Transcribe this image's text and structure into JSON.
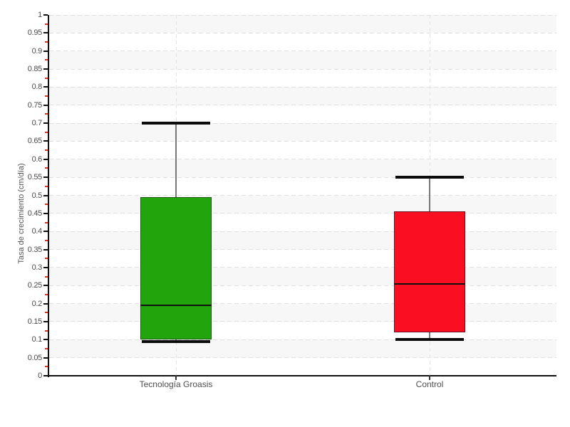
{
  "chart_data": {
    "type": "boxplot",
    "title": "",
    "xlabel": "",
    "ylabel": "Tasa de crecimiento (cm/día)",
    "ylim": [
      0,
      1
    ],
    "ytick_step": 0.05,
    "ytick_labels": [
      "0",
      "0.05",
      "0.1",
      "0.15",
      "0.2",
      "0.25",
      "0.3",
      "0.35",
      "0.4",
      "0.45",
      "0.5",
      "0.55",
      "0.6",
      "0.65",
      "0.7",
      "0.75",
      "0.8",
      "0.85",
      "0.9",
      "0.95",
      "1"
    ],
    "grid": "dashed horizontal at each 0.05, dashed vertical at category centers, alternating background bands",
    "legend": "none",
    "categories": [
      "Tecnología Groasis",
      "Control"
    ],
    "series": [
      {
        "name": "Tecnología Groasis",
        "min": 0.095,
        "q1": 0.1,
        "median": 0.195,
        "q3": 0.495,
        "max": 0.7,
        "fill": "#22a40c",
        "stroke": "#1a5c12"
      },
      {
        "name": "Control",
        "min": 0.1,
        "q1": 0.12,
        "median": 0.255,
        "q3": 0.455,
        "max": 0.55,
        "fill": "#fa0e22",
        "stroke": "#6b1020"
      }
    ],
    "colors": {
      "band_fill": "#f7f7f7",
      "grid_line": "#e0e0e0",
      "axis_line": "#111111",
      "major_tick": "#111111",
      "minor_tick": "#f32b12",
      "tick_label": "#4a4a4a",
      "whisker_line": "#777777",
      "whisker_cap": "#0b0b0b",
      "median_line": "#101010",
      "background": "#ffffff"
    }
  }
}
